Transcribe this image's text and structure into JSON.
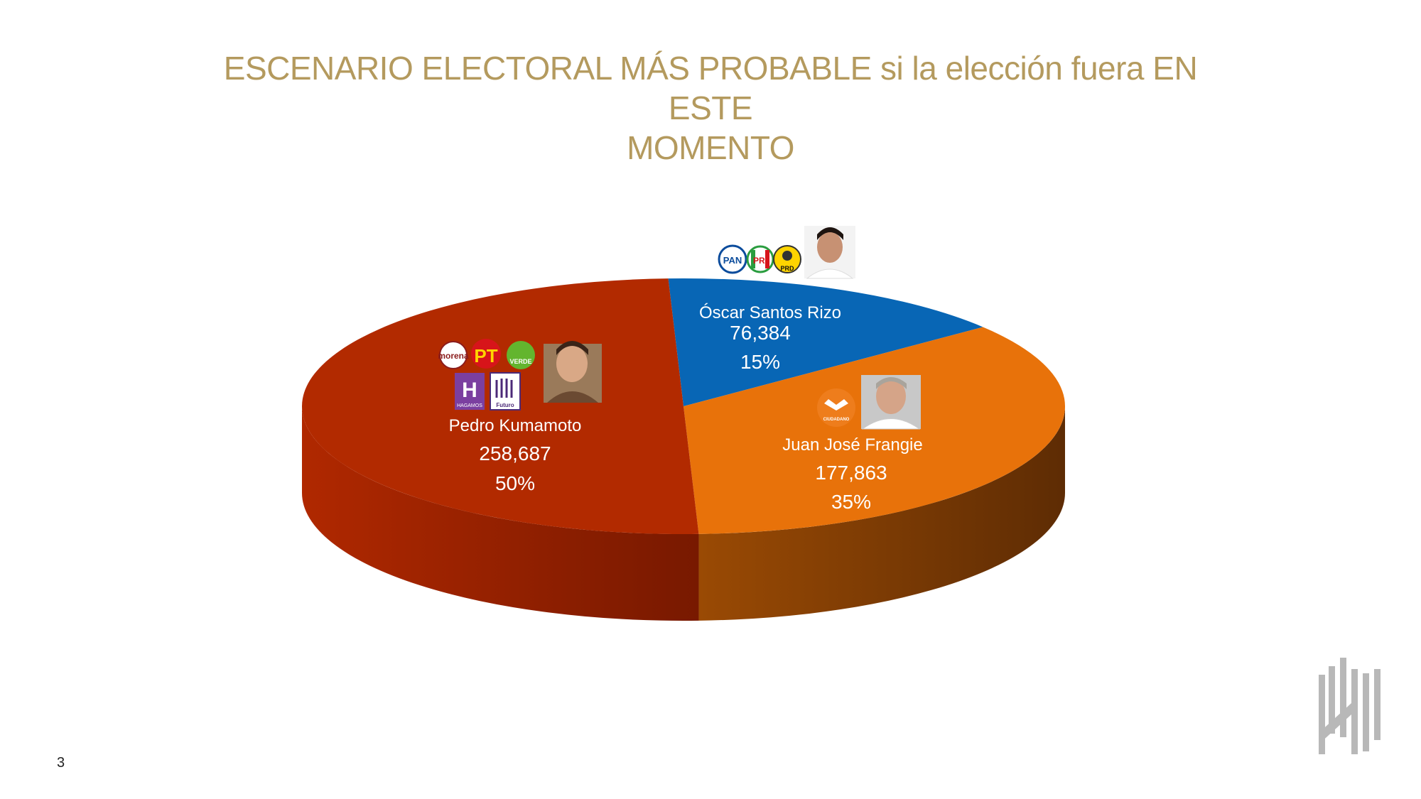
{
  "title_lines": [
    "ESCENARIO ELECTORAL MÁS PROBABLE si la elección fuera EN ESTE",
    "MOMENTO"
  ],
  "page_number": "3",
  "chart_data": {
    "type": "pie",
    "style": "3d",
    "slices": [
      {
        "name": "Pedro Kumamoto",
        "votes": 258687,
        "votes_label": "258,687",
        "percent": 50,
        "percent_label": "50%",
        "color": "#b22a00",
        "party_logos": [
          "morena",
          "PT",
          "VERDE",
          "HAGAMOS",
          "Futuro"
        ]
      },
      {
        "name": "Óscar Santos Rizo",
        "votes": 76384,
        "votes_label": "76,384",
        "percent": 15,
        "percent_label": "15%",
        "color": "#0866b5",
        "party_logos": [
          "PAN",
          "PRI",
          "PRD"
        ]
      },
      {
        "name": "Juan José Frangie",
        "votes": 177863,
        "votes_label": "177,863",
        "percent": 35,
        "percent_label": "35%",
        "color": "#e8720a",
        "party_logos": [
          "MOVIMIENTO CIUDADANO"
        ]
      }
    ]
  }
}
